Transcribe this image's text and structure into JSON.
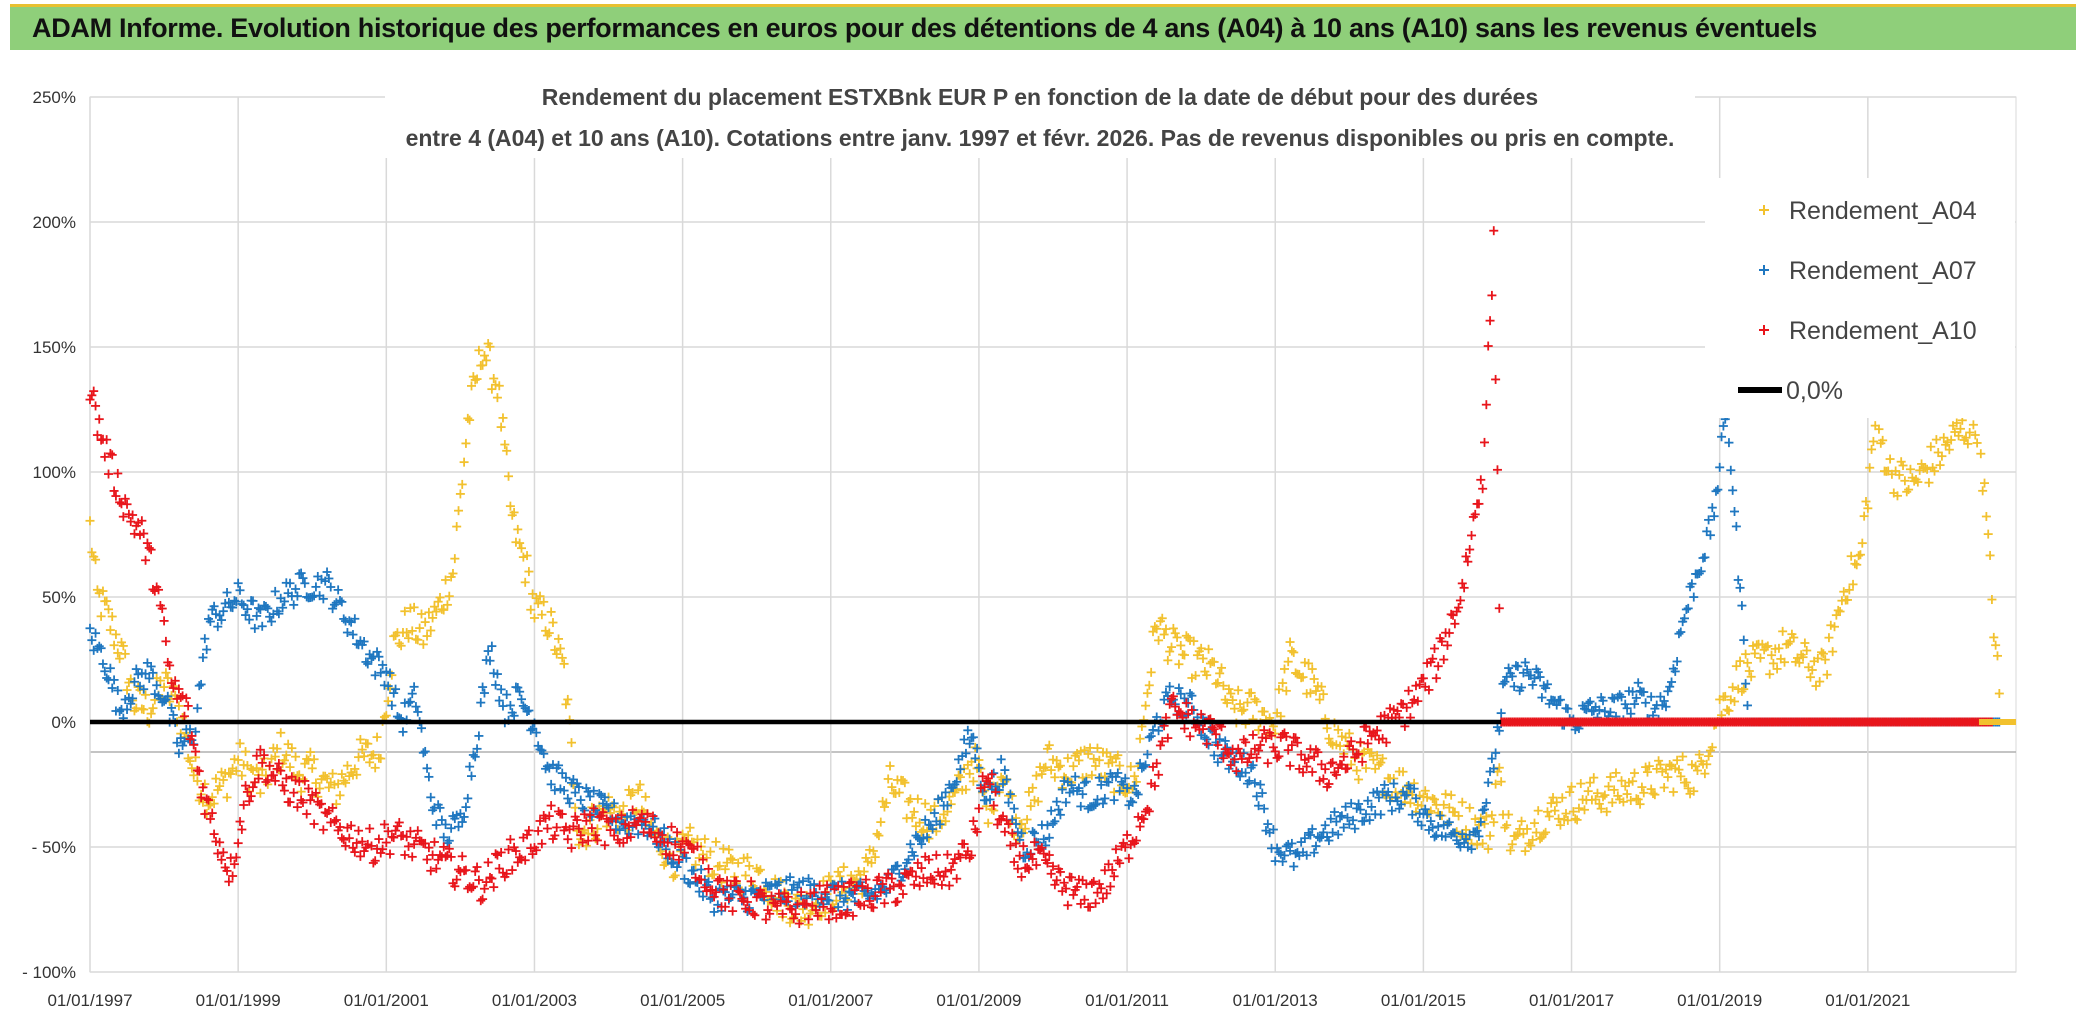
{
  "header": {
    "banner_title": "ADAM Informe. Evolution historique des performances en euros pour des détentions de 4 ans (A04) à 10 ans (A10) sans les revenus éventuels"
  },
  "colors": {
    "banner": "#8fcf7a",
    "a04": "#f2c12e",
    "a07": "#1f77c0",
    "a10": "#e8151b",
    "zero": "#000000",
    "grid": "#d9d9d9"
  },
  "chart_data": {
    "type": "scatter",
    "title_line1": "Rendement du placement ESTXBnk EUR P en fonction de la date de début pour des durées",
    "title_line2": "entre 4 (A04) et 10 ans (A10). Cotations entre janv. 1997 et févr. 2026. Pas de revenus disponibles ou pris en compte.",
    "x_range": [
      1997.0,
      2023.0
    ],
    "ylim": [
      -100,
      250
    ],
    "y_ticks": [
      {
        "value": 250,
        "label": "250%"
      },
      {
        "value": 200,
        "label": "200%"
      },
      {
        "value": 150,
        "label": "150%"
      },
      {
        "value": 100,
        "label": "100%"
      },
      {
        "value": 50,
        "label": "50%"
      },
      {
        "value": 0,
        "label": "0%"
      },
      {
        "value": -50,
        "label": "- 50%"
      },
      {
        "value": -100,
        "label": "- 100%"
      }
    ],
    "x_ticks": [
      {
        "value": 1997,
        "label": "01/01/1997"
      },
      {
        "value": 1999,
        "label": "01/01/1999"
      },
      {
        "value": 2001,
        "label": "01/01/2001"
      },
      {
        "value": 2003,
        "label": "01/01/2003"
      },
      {
        "value": 2005,
        "label": "01/01/2005"
      },
      {
        "value": 2007,
        "label": "01/01/2007"
      },
      {
        "value": 2009,
        "label": "01/01/2009"
      },
      {
        "value": 2011,
        "label": "01/01/2011"
      },
      {
        "value": 2013,
        "label": "01/01/2013"
      },
      {
        "value": 2015,
        "label": "01/01/2015"
      },
      {
        "value": 2017,
        "label": "01/01/2017"
      },
      {
        "value": 2019,
        "label": "01/01/2019"
      },
      {
        "value": 2021,
        "label": "01/01/2021"
      }
    ],
    "legend": [
      {
        "name": "Rendement_A04",
        "marker": "+",
        "color_key": "a04"
      },
      {
        "name": "Rendement_A07",
        "marker": "+",
        "color_key": "a07"
      },
      {
        "name": "Rendement_A10",
        "marker": "+",
        "color_key": "a10"
      },
      {
        "name": "0,0%",
        "marker": "line",
        "color_key": "zero"
      }
    ],
    "series": [
      {
        "name": "Rendement_A04",
        "color_key": "a04",
        "x": [
          1997.0,
          1997.1,
          1997.2,
          1997.4,
          1997.6,
          1997.8,
          1998.0,
          1998.2,
          1998.4,
          1998.6,
          1998.8,
          1999.0,
          1999.3,
          1999.6,
          1999.8,
          2000.0,
          2000.3,
          2000.6,
          2000.9,
          2001.1,
          2001.3,
          2001.5,
          2001.7,
          2001.9,
          2002.1,
          2002.3,
          2002.5,
          2002.7,
          2002.9,
          2003.0,
          2003.2,
          2003.4,
          2003.6,
          2003.8,
          2004.0,
          2004.2,
          2004.4,
          2004.6,
          2004.9,
          2005.1,
          2005.4,
          2005.7,
          2006.0,
          2006.3,
          2006.6,
          2006.9,
          2007.2,
          2007.5,
          2007.8,
          2008.1,
          2008.4,
          2008.7,
          2008.9,
          2009.0,
          2009.1,
          2009.3,
          2009.5,
          2009.7,
          2009.9,
          2010.2,
          2010.5,
          2010.8,
          2011.1,
          2011.4,
          2011.6,
          2011.9,
          2012.2,
          2012.4,
          2012.7,
          2013.0,
          2013.2,
          2013.5,
          2013.8,
          2014.1,
          2014.4,
          2014.7,
          2015.0,
          2015.3,
          2015.6,
          2015.9,
          2016.0,
          2016.2,
          2016.5,
          2016.8,
          2017.2,
          2017.6,
          2018.0,
          2018.4,
          2018.7,
          2019.0,
          2019.3,
          2019.6,
          2019.9,
          2020.1,
          2020.4,
          2020.7,
          2020.9,
          2021.1,
          2021.3,
          2021.6,
          2021.9,
          2022.2,
          2022.5,
          2022.8
        ],
        "y": [
          78,
          50,
          45,
          30,
          8,
          5,
          15,
          5,
          -20,
          -30,
          -25,
          -15,
          -25,
          -10,
          -20,
          -20,
          -28,
          -15,
          -12,
          30,
          40,
          35,
          45,
          60,
          120,
          150,
          135,
          80,
          60,
          45,
          40,
          20,
          -45,
          -40,
          -35,
          -38,
          -30,
          -45,
          -55,
          -50,
          -55,
          -60,
          -60,
          -70,
          -75,
          -70,
          -65,
          -60,
          -25,
          -35,
          -40,
          -30,
          -15,
          -20,
          -35,
          -20,
          -40,
          -35,
          -15,
          -20,
          -15,
          -20,
          -25,
          40,
          30,
          25,
          20,
          5,
          5,
          0,
          25,
          15,
          -5,
          -15,
          -20,
          -25,
          -30,
          -35,
          -40,
          -45,
          -20,
          -50,
          -40,
          -35,
          -30,
          -28,
          -25,
          -20,
          -22,
          5,
          20,
          25,
          30,
          25,
          20,
          55,
          65,
          120,
          100,
          95,
          105,
          115,
          120,
          0
        ],
        "jitter": 8
      },
      {
        "name": "Rendement_A07",
        "color_key": "a07",
        "x": [
          1997.0,
          1997.2,
          1997.4,
          1997.6,
          1997.8,
          1998.0,
          1998.2,
          1998.4,
          1998.6,
          1998.8,
          1999.0,
          1999.3,
          1999.6,
          1999.9,
          2000.2,
          2000.5,
          2000.8,
          2001.0,
          2001.2,
          2001.4,
          2001.6,
          2001.8,
          2002.0,
          2002.2,
          2002.4,
          2002.6,
          2002.8,
          2003.0,
          2003.2,
          2003.4,
          2003.6,
          2003.9,
          2004.2,
          2004.5,
          2004.8,
          2005.1,
          2005.4,
          2005.7,
          2006.0,
          2006.3,
          2006.6,
          2006.9,
          2007.2,
          2007.5,
          2007.8,
          2008.1,
          2008.4,
          2008.7,
          2008.9,
          2009.1,
          2009.3,
          2009.6,
          2009.9,
          2010.2,
          2010.5,
          2010.8,
          2011.1,
          2011.4,
          2011.6,
          2011.9,
          2012.2,
          2012.4,
          2012.7,
          2013.0,
          2013.3,
          2013.6,
          2013.9,
          2014.2,
          2014.5,
          2014.8,
          2015.1,
          2015.4,
          2015.7,
          2015.9,
          2016.1,
          2016.4,
          2016.7,
          2017.0,
          2017.3,
          2017.6,
          2017.9,
          2018.1,
          2018.3,
          2018.5,
          2018.7,
          2018.9,
          2019.1,
          2019.4,
          2019.7,
          2020.0,
          2020.4,
          2020.8,
          2021.2,
          2021.6,
          2022.0,
          2022.4,
          2022.8
        ],
        "y": [
          35,
          25,
          5,
          15,
          20,
          10,
          -10,
          -5,
          40,
          45,
          50,
          40,
          50,
          55,
          55,
          40,
          25,
          20,
          0,
          10,
          -30,
          -45,
          -40,
          -10,
          30,
          5,
          10,
          0,
          -20,
          -25,
          -30,
          -35,
          -40,
          -40,
          -50,
          -60,
          -70,
          -70,
          -70,
          -68,
          -68,
          -68,
          -70,
          -70,
          -65,
          -50,
          -40,
          -20,
          -5,
          -30,
          -20,
          -50,
          -45,
          -25,
          -30,
          -25,
          -30,
          0,
          10,
          5,
          -10,
          -15,
          -20,
          -50,
          -55,
          -45,
          -40,
          -35,
          -30,
          -30,
          -40,
          -45,
          -45,
          -25,
          15,
          20,
          10,
          0,
          5,
          5,
          10,
          5,
          10,
          40,
          60,
          80,
          125,
          0,
          0,
          0,
          0,
          0,
          0,
          0,
          0,
          0,
          0
        ],
        "jitter": 6
      },
      {
        "name": "Rendement_A10",
        "color_key": "a10",
        "x": [
          1997.0,
          1997.1,
          1997.3,
          1997.5,
          1997.7,
          1997.9,
          1998.1,
          1998.3,
          1998.5,
          1998.7,
          1998.9,
          1999.1,
          1999.3,
          1999.6,
          1999.9,
          2000.2,
          2000.5,
          2000.8,
          2001.1,
          2001.4,
          2001.7,
          2002.0,
          2002.3,
          2002.6,
          2002.9,
          2003.2,
          2003.5,
          2003.8,
          2004.1,
          2004.4,
          2004.7,
          2005.0,
          2005.3,
          2005.6,
          2005.9,
          2006.2,
          2006.5,
          2006.8,
          2007.1,
          2007.4,
          2007.7,
          2008.0,
          2008.3,
          2008.6,
          2008.9,
          2009.1,
          2009.3,
          2009.5,
          2009.8,
          2010.1,
          2010.4,
          2010.7,
          2011.0,
          2011.3,
          2011.6,
          2011.9,
          2012.2,
          2012.5,
          2012.8,
          2013.1,
          2013.4,
          2013.7,
          2014.0,
          2014.3,
          2014.6,
          2014.9,
          2015.2,
          2015.5,
          2015.8,
          2015.95,
          2016.05,
          2016.3,
          2016.7,
          2017.1,
          2017.5,
          2017.9,
          2018.3,
          2018.7,
          2019.1,
          2019.5,
          2019.9,
          2020.3,
          2020.7,
          2021.1,
          2021.5,
          2021.9,
          2022.3,
          2022.7
        ],
        "y": [
          135,
          120,
          100,
          85,
          75,
          55,
          15,
          5,
          -25,
          -45,
          -60,
          -30,
          -15,
          -25,
          -30,
          -40,
          -45,
          -50,
          -45,
          -50,
          -55,
          -60,
          -65,
          -55,
          -50,
          -40,
          -45,
          -40,
          -45,
          -40,
          -45,
          -50,
          -60,
          -70,
          -70,
          -75,
          -75,
          -72,
          -72,
          -70,
          -68,
          -65,
          -60,
          -60,
          -50,
          -20,
          -40,
          -55,
          -55,
          -65,
          -70,
          -65,
          -50,
          -30,
          5,
          0,
          -5,
          -15,
          -10,
          -10,
          -15,
          -20,
          -15,
          -5,
          0,
          10,
          25,
          50,
          100,
          190,
          0,
          0,
          0,
          0,
          0,
          0,
          0,
          0,
          0,
          0,
          0,
          0,
          0,
          0,
          0,
          0,
          0,
          0
        ],
        "jitter": 7
      },
      {
        "name": "0,0%",
        "color_key": "zero",
        "x": [
          1997.0,
          2023.0
        ],
        "y": [
          0,
          0
        ]
      }
    ]
  }
}
